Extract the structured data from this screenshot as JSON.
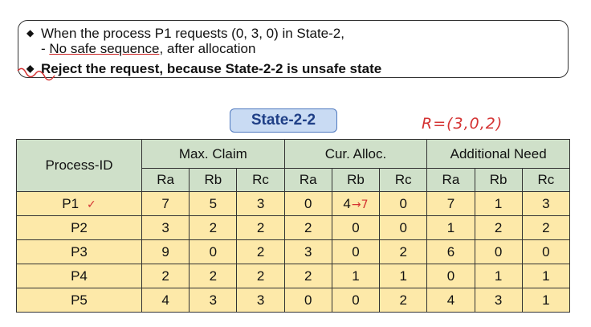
{
  "notes": {
    "line1": "When the process P1 requests (0, 3, 0) in State-2,",
    "line2_underlined": "No safe sequence",
    "line2_prefix": "- ",
    "line2_rest": ", after allocation",
    "line3": "Reject the request, because State-2-2 is unsafe state"
  },
  "state_title": "State-2-2",
  "handwritten_note": "R=(3,0,2)",
  "table": {
    "process_header": "Process-ID",
    "group_headers": [
      "Max. Claim",
      "Cur. Alloc.",
      "Additional Need"
    ],
    "sub_headers": [
      "Ra",
      "Rb",
      "Rc",
      "Ra",
      "Rb",
      "Rc",
      "Ra",
      "Rb",
      "Rc"
    ],
    "rows": [
      {
        "id": "P1",
        "max": [
          "7",
          "5",
          "3"
        ],
        "alloc": [
          "0",
          "4",
          "0"
        ],
        "need": [
          "7",
          "1",
          "3"
        ]
      },
      {
        "id": "P2",
        "max": [
          "3",
          "2",
          "2"
        ],
        "alloc": [
          "2",
          "0",
          "0"
        ],
        "need": [
          "1",
          "2",
          "2"
        ]
      },
      {
        "id": "P3",
        "max": [
          "9",
          "0",
          "2"
        ],
        "alloc": [
          "3",
          "0",
          "2"
        ],
        "need": [
          "6",
          "0",
          "0"
        ]
      },
      {
        "id": "P4",
        "max": [
          "2",
          "2",
          "2"
        ],
        "alloc": [
          "2",
          "1",
          "1"
        ],
        "need": [
          "0",
          "1",
          "1"
        ]
      },
      {
        "id": "P5",
        "max": [
          "4",
          "3",
          "3"
        ],
        "alloc": [
          "0",
          "0",
          "2"
        ],
        "need": [
          "4",
          "3",
          "1"
        ]
      }
    ],
    "p1_mark": "✓",
    "p1_rb_annotation": "→7"
  },
  "colors": {
    "header_bg": "#cfe0c9",
    "cell_bg": "#fde9a9",
    "title_bg": "#c9dbf3",
    "annotation": "#d43333"
  }
}
